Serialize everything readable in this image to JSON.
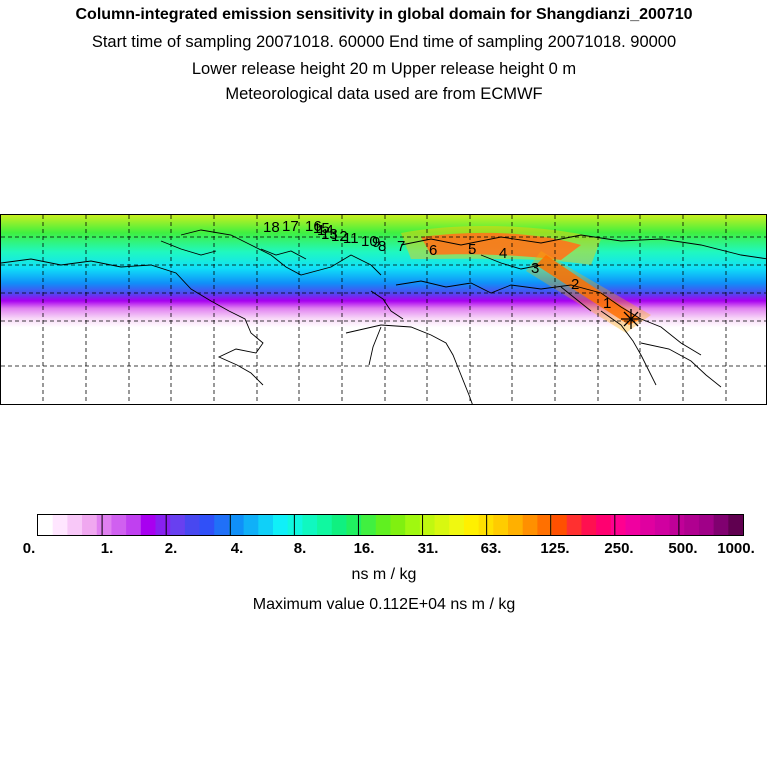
{
  "header": {
    "title": "Column-integrated emission sensitivity in global domain for Shangdianzi_200710",
    "sampling": "Start time of sampling 20071018. 60000     End time of sampling 20071018. 90000",
    "release": "Lower release height   20 m          Upper release height    0 m",
    "met": "Meteorological data used are from ECMWF"
  },
  "map": {
    "track_labels": [
      "1",
      "2",
      "3",
      "4",
      "5",
      "6",
      "7",
      "8",
      "9",
      "10",
      "11",
      "12",
      "13",
      "14",
      "15",
      "16",
      "17",
      "18"
    ],
    "receptor_marker": "star-cross-icon"
  },
  "colorbar": {
    "ticks": [
      "0.",
      "1.",
      "2.",
      "4.",
      "8.",
      "16.",
      "31.",
      "63.",
      "125.",
      "250.",
      "500.",
      "1000."
    ],
    "colors": [
      "#ffffff",
      "#ffe6ff",
      "#f8c8f8",
      "#f0a8f0",
      "#e080f0",
      "#d060f0",
      "#c040f0",
      "#a800f0",
      "#8820f0",
      "#6840f0",
      "#4848f0",
      "#3050f8",
      "#2070f8",
      "#1090f8",
      "#10b0f8",
      "#10d0f8",
      "#10f0f8",
      "#10f8e0",
      "#10f8c0",
      "#10f8a0",
      "#10f080",
      "#20f060",
      "#40f040",
      "#60f020",
      "#80f010",
      "#a0f810",
      "#c0f810",
      "#d8f810",
      "#f0f810",
      "#fff000",
      "#ffe000",
      "#ffcc00",
      "#ffb000",
      "#ff9000",
      "#ff7000",
      "#ff5000",
      "#ff3030",
      "#ff1050",
      "#ff0070",
      "#ff0090",
      "#f000a0",
      "#e000a0",
      "#d000a0",
      "#c00098",
      "#b00090",
      "#a00088",
      "#800070",
      "#600050"
    ],
    "unit": "ns m / kg",
    "maximum": "Maximum value  0.112E+04 ns m / kg"
  }
}
